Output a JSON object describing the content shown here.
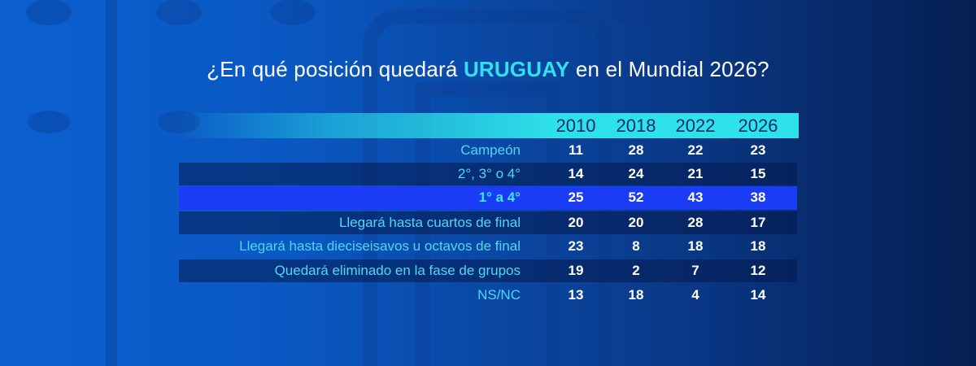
{
  "title": {
    "prefix": "¿En qué posición quedará ",
    "highlight": "URUGUAY",
    "suffix": " en el Mundial 2026?"
  },
  "colors": {
    "accent": "#31e1ee",
    "highlight_row": "#1a3cf5",
    "label_text": "#4fd8f2"
  },
  "chart_data": {
    "type": "table",
    "title": "¿En qué posición quedará URUGUAY en el Mundial 2026?",
    "columns": [
      "2010",
      "2018",
      "2022",
      "2026"
    ],
    "rows": [
      {
        "label": "Campeón",
        "values": [
          "11",
          "28",
          "22",
          "23"
        ],
        "highlight": false
      },
      {
        "label": "2°, 3° o 4°",
        "values": [
          "14",
          "24",
          "21",
          "15"
        ],
        "highlight": false
      },
      {
        "label": "1° a 4°",
        "values": [
          "25",
          "52",
          "43",
          "38"
        ],
        "highlight": true
      },
      {
        "label": "Llegará hasta cuartos de final",
        "values": [
          "20",
          "20",
          "28",
          "17"
        ],
        "highlight": false
      },
      {
        "label": "Llegará hasta dieciseisavos u octavos de final",
        "values": [
          "23",
          "8",
          "18",
          "18"
        ],
        "highlight": false
      },
      {
        "label": "Quedará eliminado en la fase de grupos",
        "values": [
          "19",
          "2",
          "7",
          "12"
        ],
        "highlight": false
      },
      {
        "label": "NS/NC",
        "values": [
          "13",
          "18",
          "4",
          "14"
        ],
        "highlight": false
      }
    ]
  }
}
